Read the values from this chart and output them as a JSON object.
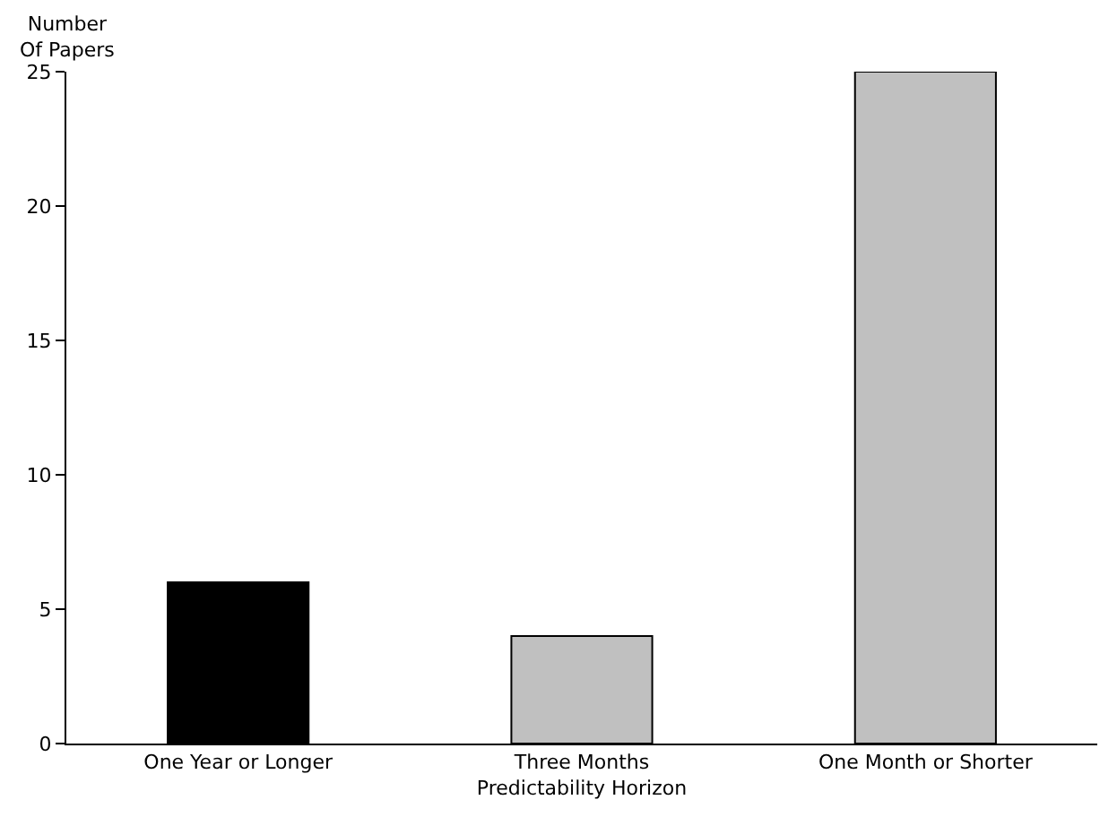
{
  "chart_data": {
    "type": "bar",
    "ylabel": "Number\nOf Papers",
    "xlabel": "Predictability Horizon",
    "categories": [
      "One Year or Longer",
      "Three Months",
      "One Month or Shorter"
    ],
    "values": [
      6,
      4,
      25
    ],
    "colors": [
      "#000000",
      "#c0c0c0",
      "#c0c0c0"
    ],
    "ylim": [
      0,
      25
    ],
    "yticks": [
      0,
      5,
      10,
      15,
      20,
      25
    ]
  }
}
